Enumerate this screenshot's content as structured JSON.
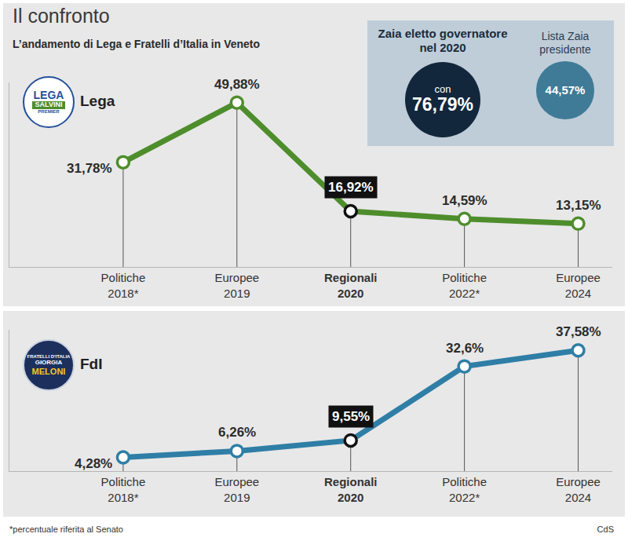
{
  "title": "Il confronto",
  "subtitle": "L’andamento di Lega e Fratelli d’Italia in Veneto",
  "inset": {
    "heading": "Zaia eletto governatore nel 2020",
    "prefix": "con",
    "value": 76.79,
    "value_label": "76,79%",
    "list_name": "Lista Zaia presidente",
    "list_value": 44.57,
    "list_value_label": "44,57%"
  },
  "note": "*percentuale riferita al Senato",
  "source": "CdS",
  "chart_data": [
    {
      "type": "line",
      "title": "Lega",
      "logo": [
        "LEGA",
        "SALVINI",
        "PREMIER"
      ],
      "categories": [
        "Politiche\n2018*",
        "Europee\n2019",
        "Regionali\n2020",
        "Politiche\n2022*",
        "Europee\n2024"
      ],
      "values": [
        31.78,
        49.88,
        16.92,
        14.59,
        13.15
      ],
      "value_labels": [
        "31,78%",
        "49,88%",
        "16,92%",
        "14,59%",
        "13,15%"
      ],
      "color": "#4e8d2c",
      "marker": "circle",
      "data_labels": true,
      "tick_labels": "x",
      "ylim": [
        0,
        56
      ]
    },
    {
      "type": "line",
      "title": "FdI",
      "logo": [
        "FRATELLI D'ITALIA",
        "GIORGIA",
        "MELONI"
      ],
      "categories": [
        "Politiche\n2018*",
        "Europee\n2019",
        "Regionali\n2020",
        "Politiche\n2022*",
        "Europee\n2024"
      ],
      "values": [
        4.28,
        6.26,
        9.55,
        32.6,
        37.58
      ],
      "value_labels": [
        "4,28%",
        "6,26%",
        "9,55%",
        "32,6%",
        "37,58%"
      ],
      "color": "#2f7ea6",
      "marker": "circle",
      "data_labels": true,
      "tick_labels": "x",
      "ylim": [
        0,
        44
      ]
    }
  ]
}
